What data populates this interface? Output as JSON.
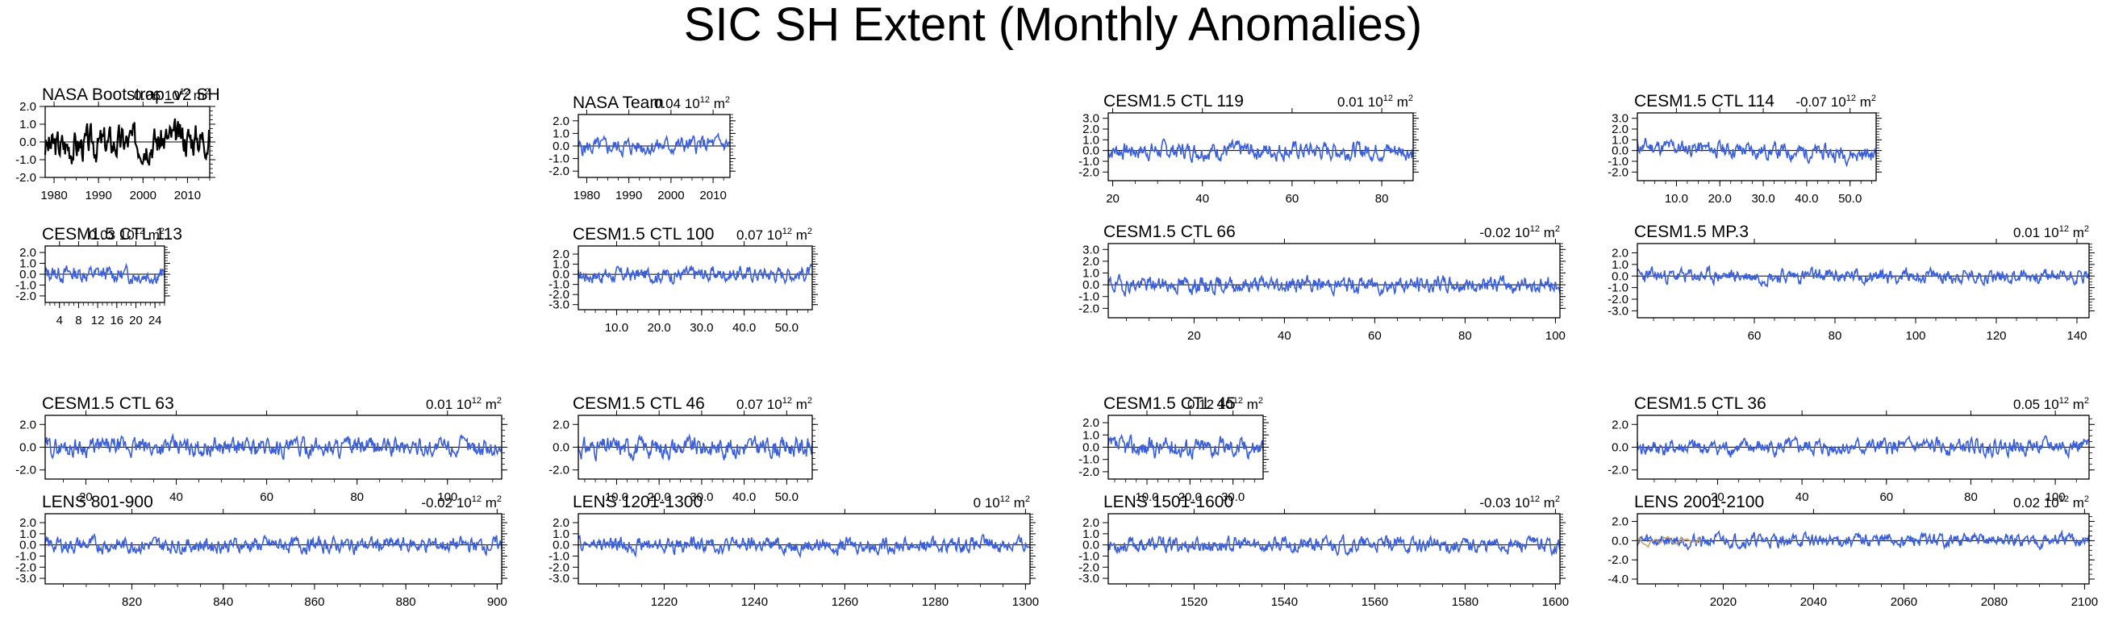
{
  "title": "SIC SH Extent (Monthly Anomalies)",
  "colors": {
    "obs": "#000000",
    "model": "#3a5fd9",
    "zero": "#000000",
    "overlay": "#c8a26e"
  },
  "chart_data": [
    {
      "type": "line",
      "title": "NASA Bootstrap_v2 SH",
      "value": "0.06",
      "unit": "10",
      "unit_exp": "12",
      "unit_tail": " m",
      "unit_exp2": "2",
      "xlim": [
        1978,
        2015
      ],
      "ylim": [
        -2.0,
        2.0
      ],
      "xticks": [
        1980,
        1990,
        2000,
        2010
      ],
      "xtick_labels": [
        "1980",
        "1990",
        "2000",
        "2010"
      ],
      "yticks": [
        -2.0,
        -1.0,
        0.0,
        1.0,
        2.0
      ],
      "ytick_labels": [
        "-2.0",
        "-1.0",
        "0.0",
        "1.0",
        "2.0"
      ],
      "series_color": "obs",
      "amp": 0.75,
      "trend": 0.6,
      "seed": 3
    },
    {
      "type": "line",
      "title": "NASA Team",
      "value": "0.04",
      "unit": "10",
      "unit_exp": "12",
      "unit_tail": " m",
      "unit_exp2": "2",
      "xlim": [
        1978,
        2014
      ],
      "ylim": [
        -2.5,
        2.5
      ],
      "xticks": [
        1980,
        1990,
        2000,
        2010
      ],
      "xtick_labels": [
        "1980",
        "1990",
        "2000",
        "2010"
      ],
      "yticks": [
        -2.0,
        -1.0,
        0.0,
        1.0,
        2.0
      ],
      "ytick_labels": [
        "-2.0",
        "-1.0",
        "0.0",
        "1.0",
        "2.0"
      ],
      "series_color": "model",
      "amp": 0.55,
      "trend": 0.3,
      "seed": 5
    },
    {
      "type": "line",
      "title": "CESM1.5 CTL 119",
      "value": "0.01",
      "unit": "10",
      "unit_exp": "12",
      "unit_tail": " m",
      "unit_exp2": "2",
      "xlim": [
        19,
        87
      ],
      "ylim": [
        -2.8,
        3.5
      ],
      "xticks": [
        20,
        40,
        60,
        80
      ],
      "xtick_labels": [
        "20",
        "40",
        "60",
        "80"
      ],
      "yticks": [
        -2.0,
        -1.0,
        0.0,
        1.0,
        2.0,
        3.0
      ],
      "ytick_labels": [
        "-2.0",
        "-1.0",
        "0.0",
        "1.0",
        "2.0",
        "3.0"
      ],
      "series_color": "model",
      "amp": 0.65,
      "trend": 0,
      "seed": 7
    },
    {
      "type": "line",
      "title": "CESM1.5 CTL 114",
      "value": "-0.07",
      "unit": "10",
      "unit_exp": "12",
      "unit_tail": " m",
      "unit_exp2": "2",
      "xlim": [
        1,
        56
      ],
      "ylim": [
        -2.8,
        3.5
      ],
      "xticks": [
        10,
        20,
        30,
        40,
        50
      ],
      "xtick_labels": [
        "10.0",
        "20.0",
        "30.0",
        "40.0",
        "50.0"
      ],
      "yticks": [
        -2.0,
        -1.0,
        0.0,
        1.0,
        2.0,
        3.0
      ],
      "ytick_labels": [
        "-2.0",
        "-1.0",
        "0.0",
        "1.0",
        "2.0",
        "3.0"
      ],
      "series_color": "model",
      "amp": 0.6,
      "trend": -0.8,
      "seed": 11
    },
    {
      "type": "line",
      "title": "CESM1.5 CTL 113",
      "value": "0.03",
      "unit": "10",
      "unit_exp": "12",
      "unit_tail": " m",
      "unit_exp2": "2",
      "xlim": [
        1,
        26
      ],
      "ylim": [
        -2.6,
        2.6
      ],
      "xticks": [
        4,
        8,
        12,
        16,
        20,
        24
      ],
      "xtick_labels": [
        "4",
        "8",
        "12",
        "16",
        "20",
        "24"
      ],
      "yticks": [
        -2.0,
        -1.0,
        0.0,
        1.0,
        2.0
      ],
      "ytick_labels": [
        "-2.0",
        "-1.0",
        "0.0",
        "1.0",
        "2.0"
      ],
      "series_color": "model",
      "amp": 0.6,
      "trend": -0.2,
      "seed": 13
    },
    {
      "type": "line",
      "title": "CESM1.5 CTL 100",
      "value": "0.07",
      "unit": "10",
      "unit_exp": "12",
      "unit_tail": " m",
      "unit_exp2": "2",
      "xlim": [
        1,
        56
      ],
      "ylim": [
        -3.5,
        2.8
      ],
      "xticks": [
        10,
        20,
        30,
        40,
        50
      ],
      "xtick_labels": [
        "10.0",
        "20.0",
        "30.0",
        "40.0",
        "50.0"
      ],
      "yticks": [
        -3.0,
        -2.0,
        -1.0,
        0.0,
        1.0,
        2.0
      ],
      "ytick_labels": [
        "-3.0",
        "-2.0",
        "-1.0",
        "0.0",
        "1.0",
        "2.0"
      ],
      "series_color": "model",
      "amp": 0.6,
      "trend": 0.2,
      "seed": 17
    },
    {
      "type": "line",
      "title": "CESM1.5 CTL 66",
      "value": "-0.02",
      "unit": "10",
      "unit_exp": "12",
      "unit_tail": " m",
      "unit_exp2": "2",
      "xlim": [
        1,
        101
      ],
      "ylim": [
        -2.8,
        3.5
      ],
      "xticks": [
        20,
        40,
        60,
        80,
        100
      ],
      "xtick_labels": [
        "20",
        "40",
        "60",
        "80",
        "100"
      ],
      "yticks": [
        -2.0,
        -1.0,
        0.0,
        1.0,
        2.0,
        3.0
      ],
      "ytick_labels": [
        "-2.0",
        "-1.0",
        "0.0",
        "1.0",
        "2.0",
        "3.0"
      ],
      "series_color": "model",
      "amp": 0.55,
      "trend": 0,
      "seed": 19
    },
    {
      "type": "line",
      "title": "CESM1.5 MP.3",
      "value": "0.01",
      "unit": "10",
      "unit_exp": "12",
      "unit_tail": " m",
      "unit_exp2": "2",
      "xlim": [
        31,
        143
      ],
      "ylim": [
        -3.6,
        2.8
      ],
      "xticks": [
        60,
        80,
        100,
        120,
        140
      ],
      "xtick_labels": [
        "60",
        "80",
        "100",
        "120",
        "140"
      ],
      "yticks": [
        -3.0,
        -2.0,
        -1.0,
        0.0,
        1.0,
        2.0
      ],
      "ytick_labels": [
        "-3.0",
        "-2.0",
        "-1.0",
        "0.0",
        "1.0",
        "2.0"
      ],
      "series_color": "model",
      "amp": 0.5,
      "trend": 0,
      "seed": 23
    },
    {
      "type": "line",
      "title": "CESM1.5 CTL 63",
      "value": "0.01",
      "unit": "10",
      "unit_exp": "12",
      "unit_tail": " m",
      "unit_exp2": "2",
      "xlim": [
        11,
        112
      ],
      "ylim": [
        -2.8,
        2.8
      ],
      "xticks": [
        20,
        40,
        60,
        80,
        100
      ],
      "xtick_labels": [
        "20",
        "40",
        "60",
        "80",
        "100"
      ],
      "yticks": [
        -2.0,
        0.0,
        2.0
      ],
      "ytick_labels": [
        "-2.0",
        "0.0",
        "2.0"
      ],
      "series_color": "model",
      "amp": 0.65,
      "trend": 0,
      "seed": 29
    },
    {
      "type": "line",
      "title": "CESM1.5 CTL 46",
      "value": "0.07",
      "unit": "10",
      "unit_exp": "12",
      "unit_tail": " m",
      "unit_exp2": "2",
      "xlim": [
        1,
        56
      ],
      "ylim": [
        -2.8,
        2.8
      ],
      "xticks": [
        10,
        20,
        30,
        40,
        50
      ],
      "xtick_labels": [
        "10.0",
        "20.0",
        "30.0",
        "40.0",
        "50.0"
      ],
      "yticks": [
        -2.0,
        0.0,
        2.0
      ],
      "ytick_labels": [
        "-2.0",
        "0.0",
        "2.0"
      ],
      "series_color": "model",
      "amp": 0.7,
      "trend": 0.1,
      "seed": 31
    },
    {
      "type": "line",
      "title": "CESM1.5 CTL 45",
      "value": "0.12",
      "unit": "10",
      "unit_exp": "12",
      "unit_tail": " m",
      "unit_exp2": "2",
      "xlim": [
        1,
        37
      ],
      "ylim": [
        -2.6,
        2.6
      ],
      "xticks": [
        10,
        20,
        30
      ],
      "xtick_labels": [
        "10.0",
        "20.0",
        "30.0"
      ],
      "yticks": [
        -2.0,
        -1.0,
        0.0,
        1.0,
        2.0
      ],
      "ytick_labels": [
        "-2.0",
        "-1.0",
        "0.0",
        "1.0",
        "2.0"
      ],
      "series_color": "model",
      "amp": 0.65,
      "trend": 0.1,
      "seed": 37
    },
    {
      "type": "line",
      "title": "CESM1.5 CTL 36",
      "value": "0.05",
      "unit": "10",
      "unit_exp": "12",
      "unit_tail": " m",
      "unit_exp2": "2",
      "xlim": [
        1,
        108
      ],
      "ylim": [
        -2.8,
        2.8
      ],
      "xticks": [
        20,
        40,
        60,
        80,
        100
      ],
      "xtick_labels": [
        "20",
        "40",
        "60",
        "80",
        "100"
      ],
      "yticks": [
        -2.0,
        0.0,
        2.0
      ],
      "ytick_labels": [
        "-2.0",
        "0.0",
        "2.0"
      ],
      "series_color": "model",
      "amp": 0.55,
      "trend": 0.2,
      "seed": 41
    },
    {
      "type": "line",
      "title": "LENS 801-900",
      "value": "-0.02",
      "unit": "10",
      "unit_exp": "12",
      "unit_tail": " m",
      "unit_exp2": "2",
      "xlim": [
        801,
        901
      ],
      "ylim": [
        -3.5,
        2.8
      ],
      "xticks": [
        820,
        840,
        860,
        880,
        900
      ],
      "xtick_labels": [
        "820",
        "840",
        "860",
        "880",
        "900"
      ],
      "yticks": [
        -3.0,
        -2.0,
        -1.0,
        0.0,
        1.0,
        2.0
      ],
      "ytick_labels": [
        "-3.0",
        "-2.0",
        "-1.0",
        "0.0",
        "1.0",
        "2.0"
      ],
      "series_color": "model",
      "amp": 0.55,
      "trend": 0,
      "seed": 43
    },
    {
      "type": "line",
      "title": "LENS 1201-1300",
      "value": "0",
      "unit": "10",
      "unit_exp": "12",
      "unit_tail": " m",
      "unit_exp2": "2",
      "xlim": [
        1201,
        1301
      ],
      "ylim": [
        -3.5,
        2.8
      ],
      "xticks": [
        1220,
        1240,
        1260,
        1280,
        1300
      ],
      "xtick_labels": [
        "1220",
        "1240",
        "1260",
        "1280",
        "1300"
      ],
      "yticks": [
        -3.0,
        -2.0,
        -1.0,
        0.0,
        1.0,
        2.0
      ],
      "ytick_labels": [
        "-3.0",
        "-2.0",
        "-1.0",
        "0.0",
        "1.0",
        "2.0"
      ],
      "series_color": "model",
      "amp": 0.55,
      "trend": 0,
      "seed": 47
    },
    {
      "type": "line",
      "title": "LENS 1501-1600",
      "value": "-0.03",
      "unit": "10",
      "unit_exp": "12",
      "unit_tail": " m",
      "unit_exp2": "2",
      "xlim": [
        1501,
        1601
      ],
      "ylim": [
        -3.5,
        2.8
      ],
      "xticks": [
        1520,
        1540,
        1560,
        1580,
        1600
      ],
      "xtick_labels": [
        "1520",
        "1540",
        "1560",
        "1580",
        "1600"
      ],
      "yticks": [
        -3.0,
        -2.0,
        -1.0,
        0.0,
        1.0,
        2.0
      ],
      "ytick_labels": [
        "-3.0",
        "-2.0",
        "-1.0",
        "0.0",
        "1.0",
        "2.0"
      ],
      "series_color": "model",
      "amp": 0.55,
      "trend": 0,
      "seed": 53
    },
    {
      "type": "line",
      "title": "LENS 2001-2100",
      "value": "0.02",
      "unit": "10",
      "unit_exp": "12",
      "unit_tail": " m",
      "unit_exp2": "2",
      "xlim": [
        2001,
        2101
      ],
      "ylim": [
        -4.5,
        2.8
      ],
      "xticks": [
        2020,
        2040,
        2060,
        2080,
        2100
      ],
      "xtick_labels": [
        "2020",
        "2040",
        "2060",
        "2080",
        "2100"
      ],
      "yticks": [
        -4.0,
        -2.0,
        0.0,
        2.0
      ],
      "ytick_labels": [
        "-4.0",
        "-2.0",
        "0.0",
        "2.0"
      ],
      "series_color": "model",
      "amp": 0.55,
      "trend": 0,
      "seed": 59,
      "overlay": true
    }
  ]
}
